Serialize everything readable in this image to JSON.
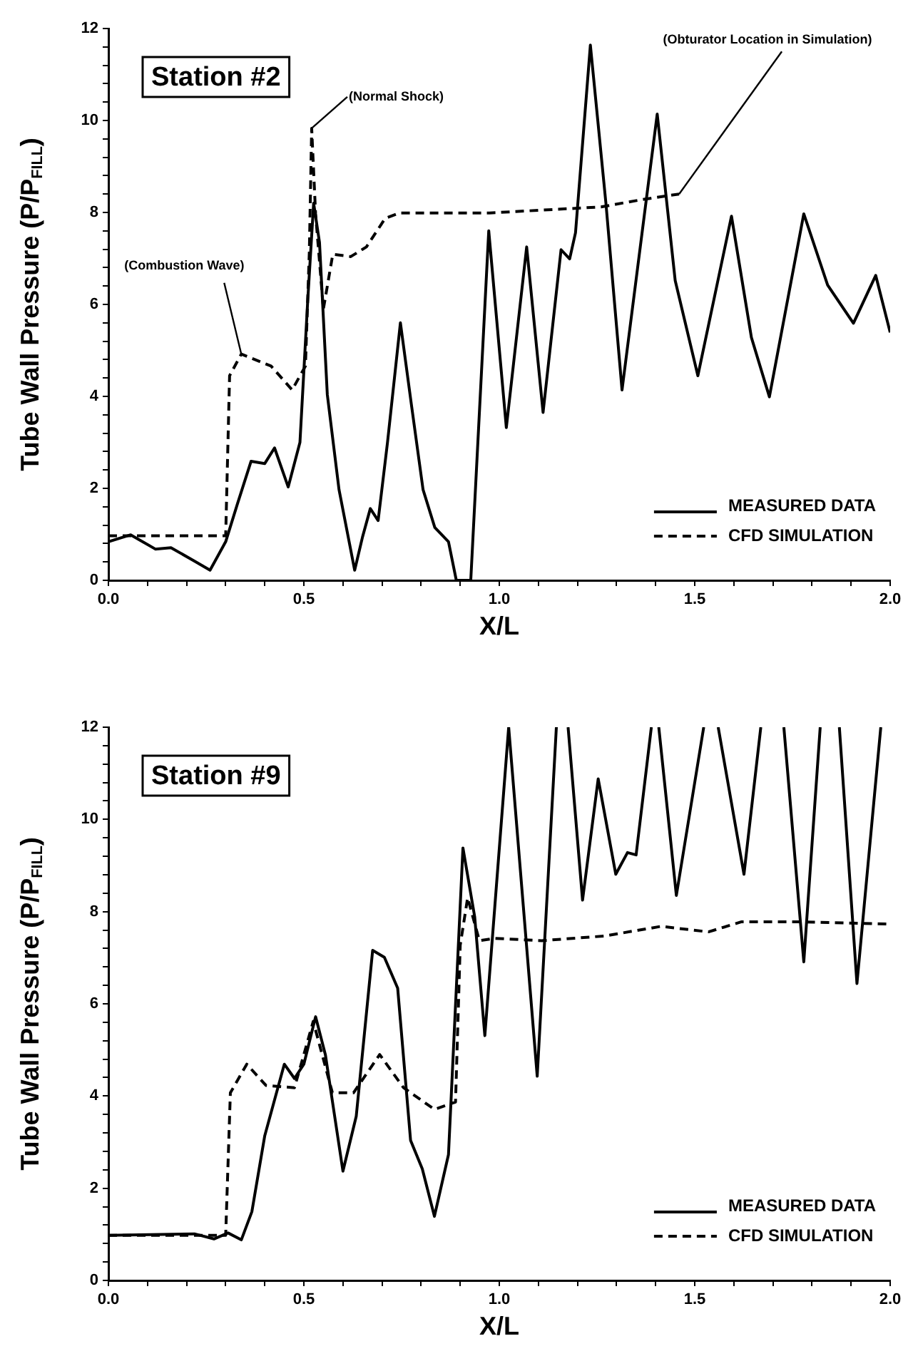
{
  "chart_data": [
    {
      "type": "line",
      "title": "Station #2",
      "xlabel": "X/L",
      "ylabel": "Tube Wall Pressure (P/P$_{FILL}$)",
      "xlim": [
        0,
        2
      ],
      "ylim": [
        0,
        12
      ],
      "xticks": [
        {
          "value": 0,
          "label": "0.0"
        },
        {
          "value": 0.1,
          "label": null
        },
        {
          "value": 0.2,
          "label": null
        },
        {
          "value": 0.3,
          "label": null
        },
        {
          "value": 0.4,
          "label": null
        },
        {
          "value": 0.5,
          "label": "0.5"
        },
        {
          "value": 0.6,
          "label": null
        },
        {
          "value": 0.7,
          "label": null
        },
        {
          "value": 0.8,
          "label": null
        },
        {
          "value": 0.9,
          "label": null
        },
        {
          "value": 1,
          "label": "1.0"
        },
        {
          "value": 1.1,
          "label": null
        },
        {
          "value": 1.2,
          "label": null
        },
        {
          "value": 1.3,
          "label": null
        },
        {
          "value": 1.4,
          "label": null
        },
        {
          "value": 1.5,
          "label": "1.5"
        },
        {
          "value": 1.6,
          "label": null
        },
        {
          "value": 1.7,
          "label": null
        },
        {
          "value": 1.8,
          "label": null
        },
        {
          "value": 1.9,
          "label": null
        },
        {
          "value": 2,
          "label": "2.0"
        }
      ],
      "yticks": [
        0,
        {
          "value": 0.4,
          "label": null
        },
        {
          "value": 0.8,
          "label": null
        },
        {
          "value": 1.2,
          "label": null
        },
        {
          "value": 1.6,
          "label": null
        },
        2,
        {
          "value": 2.4,
          "label": null
        },
        {
          "value": 2.8,
          "label": null
        },
        {
          "value": 3.2,
          "label": null
        },
        {
          "value": 3.6,
          "label": null
        },
        4,
        {
          "value": 4.4,
          "label": null
        },
        {
          "value": 4.8,
          "label": null
        },
        {
          "value": 5.2,
          "label": null
        },
        {
          "value": 5.6,
          "label": null
        },
        6,
        {
          "value": 6.4,
          "label": null
        },
        {
          "value": 6.8,
          "label": null
        },
        {
          "value": 7.2,
          "label": null
        },
        {
          "value": 7.6,
          "label": null
        },
        8,
        {
          "value": 8.4,
          "label": null
        },
        {
          "value": 8.8,
          "label": null
        },
        {
          "value": 9.2,
          "label": null
        },
        {
          "value": 9.6,
          "label": null
        },
        10,
        {
          "value": 10.4,
          "label": null
        },
        {
          "value": 10.8,
          "label": null
        },
        {
          "value": 11.2,
          "label": null
        },
        {
          "value": 11.6,
          "label": null
        },
        12
      ],
      "grid": false,
      "legend": "bottom right",
      "marker": "none",
      "series": [
        {
          "name": "MEASURED DATA",
          "color": "#000000",
          "line_style": "solid",
          "x": [
            0,
            0.057,
            0.12,
            0.16,
            0.22,
            0.26,
            0.3,
            0.33,
            0.365,
            0.4,
            0.425,
            0.46,
            0.49,
            0.51,
            0.525,
            0.54,
            0.56,
            0.59,
            0.63,
            0.65,
            0.67,
            0.69,
            0.714,
            0.747,
            0.775,
            0.805,
            0.835,
            0.87,
            0.89,
            0.927,
            0.973,
            1.018,
            1.07,
            1.112,
            1.158,
            1.18,
            1.195,
            1.233,
            1.273,
            1.314,
            1.404,
            1.45,
            1.508,
            1.594,
            1.645,
            1.691,
            1.779,
            1.84,
            1.906,
            1.963,
            2
          ],
          "values": [
            0.84,
            0.99,
            0.68,
            0.71,
            0.42,
            0.22,
            0.84,
            1.66,
            2.59,
            2.54,
            2.88,
            2.03,
            3.0,
            6.1,
            8.2,
            7.35,
            4.04,
            1.97,
            0.22,
            0.94,
            1.56,
            1.3,
            3.0,
            5.6,
            3.83,
            1.97,
            1.15,
            0.84,
            0,
            0,
            7.6,
            3.32,
            7.25,
            3.65,
            7.19,
            6.99,
            7.56,
            11.64,
            8.18,
            4.14,
            10.14,
            6.52,
            4.45,
            7.92,
            5.28,
            3.99,
            7.97,
            6.42,
            5.59,
            6.63,
            5.39
          ]
        },
        {
          "name": "CFD SIMULATION",
          "color": "#000000",
          "line_style": "dashed",
          "x": [
            0,
            0.3,
            0.31,
            0.34,
            0.416,
            0.47,
            0.504,
            0.514,
            0.52,
            0.53,
            0.55,
            0.574,
            0.62,
            0.66,
            0.708,
            0.745,
            0.975,
            1.26,
            1.365,
            1.46
          ],
          "values": [
            0.97,
            0.97,
            4.45,
            4.92,
            4.66,
            4.14,
            4.66,
            7.14,
            9.83,
            7.97,
            5.9,
            7.09,
            7.04,
            7.25,
            7.87,
            7.99,
            7.99,
            8.12,
            8.28,
            8.4
          ]
        }
      ],
      "annotations": [
        {
          "text": "(Combustion Wave)",
          "x": 0.34,
          "y": 4.92
        },
        {
          "text": "(Normal Shock)",
          "x": 0.52,
          "y": 9.83
        },
        {
          "text": "(Obturator Location in Simulation)",
          "x": 1.46,
          "y": 8.4
        }
      ]
    },
    {
      "type": "line",
      "title": "Station #9",
      "xlabel": "X/L",
      "ylabel": "Tube Wall Pressure (P/P$_{FILL}$)",
      "xlim": [
        0,
        2
      ],
      "ylim": [
        0,
        12
      ],
      "xticks": [
        {
          "value": 0,
          "label": "0.0"
        },
        {
          "value": 0.1,
          "label": null
        },
        {
          "value": 0.2,
          "label": null
        },
        {
          "value": 0.3,
          "label": null
        },
        {
          "value": 0.4,
          "label": null
        },
        {
          "value": 0.5,
          "label": "0.5"
        },
        {
          "value": 0.6,
          "label": null
        },
        {
          "value": 0.7,
          "label": null
        },
        {
          "value": 0.8,
          "label": null
        },
        {
          "value": 0.9,
          "label": null
        },
        {
          "value": 1,
          "label": "1.0"
        },
        {
          "value": 1.1,
          "label": null
        },
        {
          "value": 1.2,
          "label": null
        },
        {
          "value": 1.3,
          "label": null
        },
        {
          "value": 1.4,
          "label": null
        },
        {
          "value": 1.5,
          "label": "1.5"
        },
        {
          "value": 1.6,
          "label": null
        },
        {
          "value": 1.7,
          "label": null
        },
        {
          "value": 1.8,
          "label": null
        },
        {
          "value": 1.9,
          "label": null
        },
        {
          "value": 2,
          "label": "2.0"
        }
      ],
      "yticks": [
        0,
        {
          "value": 0.4,
          "label": null
        },
        {
          "value": 0.8,
          "label": null
        },
        {
          "value": 1.2,
          "label": null
        },
        {
          "value": 1.6,
          "label": null
        },
        2,
        {
          "value": 2.4,
          "label": null
        },
        {
          "value": 2.8,
          "label": null
        },
        {
          "value": 3.2,
          "label": null
        },
        {
          "value": 3.6,
          "label": null
        },
        4,
        {
          "value": 4.4,
          "label": null
        },
        {
          "value": 4.8,
          "label": null
        },
        {
          "value": 5.2,
          "label": null
        },
        {
          "value": 5.6,
          "label": null
        },
        6,
        {
          "value": 6.4,
          "label": null
        },
        {
          "value": 6.8,
          "label": null
        },
        {
          "value": 7.2,
          "label": null
        },
        {
          "value": 7.6,
          "label": null
        },
        8,
        {
          "value": 8.4,
          "label": null
        },
        {
          "value": 8.8,
          "label": null
        },
        {
          "value": 9.2,
          "label": null
        },
        {
          "value": 9.6,
          "label": null
        },
        10,
        {
          "value": 10.4,
          "label": null
        },
        {
          "value": 10.8,
          "label": null
        },
        {
          "value": 11.2,
          "label": null
        },
        {
          "value": 11.6,
          "label": null
        },
        12
      ],
      "grid": false,
      "legend": "bottom right",
      "marker": "none",
      "series": [
        {
          "name": "MEASURED DATA",
          "color": "#000000",
          "line_style": "solid",
          "x": [
            0,
            0.22,
            0.27,
            0.306,
            0.34,
            0.367,
            0.4,
            0.45,
            0.476,
            0.5,
            0.53,
            0.555,
            0.6,
            0.634,
            0.676,
            0.706,
            0.74,
            0.773,
            0.803,
            0.834,
            0.87,
            0.907,
            0.937,
            0.963,
            1.024,
            1.097,
            1.146,
            1.16,
            1.176,
            1.213,
            1.253,
            1.298,
            1.328,
            1.35,
            1.389,
            1.4,
            1.408,
            1.453,
            1.523,
            1.54,
            1.56,
            1.626,
            1.669,
            1.7,
            1.728,
            1.779,
            1.821,
            1.85,
            1.87,
            1.915,
            1.976
          ],
          "values": [
            0.98,
            1.01,
            0.9,
            1.03,
            0.88,
            1.49,
            3.14,
            4.69,
            4.38,
            4.69,
            5.72,
            4.9,
            2.37,
            3.56,
            7.16,
            7.01,
            6.34,
            3.04,
            2.42,
            1.39,
            2.73,
            9.38,
            7.89,
            5.31,
            12,
            4.43,
            12,
            null,
            12,
            8.25,
            10.88,
            8.81,
            9.28,
            9.23,
            12,
            null,
            12,
            8.35,
            12,
            null,
            12,
            8.81,
            12,
            null,
            12,
            6.91,
            12,
            null,
            12,
            6.44,
            12
          ]
        },
        {
          "name": "CFD SIMULATION",
          "color": "#000000",
          "line_style": "dashed",
          "x": [
            0,
            0.3,
            0.312,
            0.354,
            0.403,
            0.476,
            0.524,
            0.573,
            0.627,
            0.694,
            0.755,
            0.834,
            0.888,
            0.9,
            0.919,
            0.949,
            0.988,
            1.109,
            1.268,
            1.414,
            1.535,
            1.62,
            1.754,
            2
          ],
          "values": [
            0.98,
            0.98,
            4.07,
            4.69,
            4.23,
            4.18,
            5.62,
            4.07,
            4.07,
            4.9,
            4.18,
            3.71,
            3.87,
            7.27,
            8.3,
            7.37,
            7.42,
            7.37,
            7.47,
            7.68,
            7.56,
            7.78,
            7.78,
            7.73
          ]
        }
      ]
    }
  ]
}
